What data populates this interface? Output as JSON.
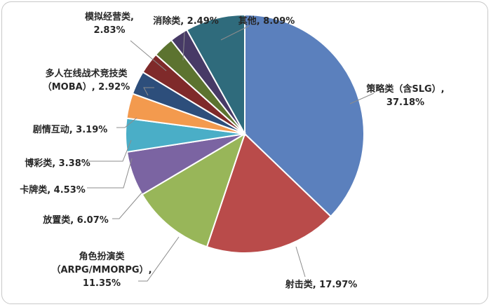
{
  "chart_data": {
    "type": "pie",
    "slices": [
      {
        "label": "策略类（含SLG）",
        "value": 37.18,
        "text": [
          "策略类（含SLG）,",
          "37.18%"
        ],
        "color": "#5b80bd"
      },
      {
        "label": "射击类",
        "value": 17.97,
        "text": [
          "射击类, 17.97%"
        ],
        "color": "#b94b4a"
      },
      {
        "label": "角色扮演类（ARPG/MMORPG）",
        "value": 11.35,
        "text": [
          "角色扮演类",
          "（ARPG/MMORPG）,",
          "11.35%"
        ],
        "color": "#98b659"
      },
      {
        "label": "放置类",
        "value": 6.07,
        "text": [
          "放置类, 6.07%"
        ],
        "color": "#7b64a2"
      },
      {
        "label": "卡牌类",
        "value": 4.53,
        "text": [
          "卡牌类, 4.53%"
        ],
        "color": "#4aaec7"
      },
      {
        "label": "博彩类",
        "value": 3.38,
        "text": [
          "博彩类, 3.38%"
        ],
        "color": "#f39a4e"
      },
      {
        "label": "剧情互动",
        "value": 3.19,
        "text": [
          "剧情互动, 3.19%"
        ],
        "color": "#2d4e7b"
      },
      {
        "label": "多人在线战术竞技类（MOBA）",
        "value": 2.92,
        "text": [
          "多人在线战术竞技类",
          "（MOBA）, 2.92%"
        ],
        "color": "#7f2a2a"
      },
      {
        "label": "模拟经营类",
        "value": 2.83,
        "text": [
          "模拟经营类,",
          "2.83%"
        ],
        "color": "#5c7330"
      },
      {
        "label": "消除类",
        "value": 2.49,
        "text": [
          "消除类, 2.49%"
        ],
        "color": "#473a66"
      },
      {
        "label": "其他",
        "value": 8.09,
        "text": [
          "其他, 8.09%"
        ],
        "color": "#2f6b7c"
      }
    ]
  }
}
